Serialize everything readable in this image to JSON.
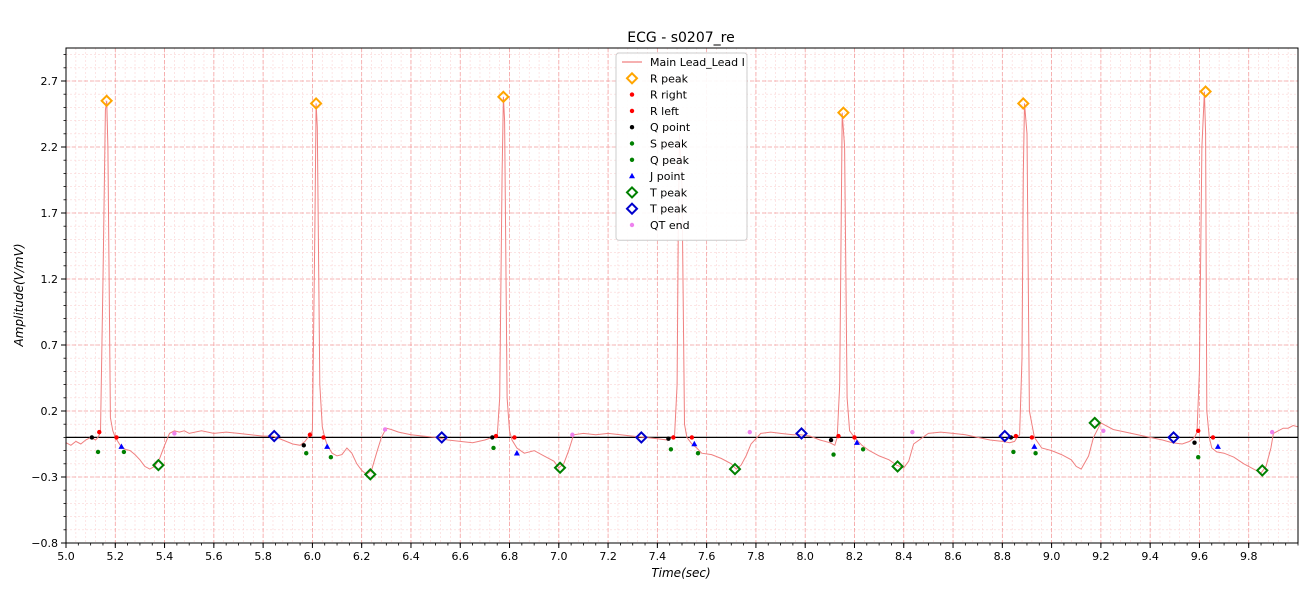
{
  "chart_data": {
    "type": "line",
    "title": "ECG - s0207_re",
    "xlabel": "Time(sec)",
    "ylabel": "Amplitude(V/mV)",
    "xlim": [
      5.0,
      10.0
    ],
    "ylim": [
      -0.8,
      2.95
    ],
    "x_ticks": [
      5.0,
      5.2,
      5.4,
      5.6,
      5.8,
      6.0,
      6.2,
      6.4,
      6.6,
      6.8,
      7.0,
      7.2,
      7.4,
      7.6,
      7.8,
      8.0,
      8.2,
      8.4,
      8.6,
      8.8,
      9.0,
      9.2,
      9.4,
      9.6,
      9.8
    ],
    "x_tick_labels": [
      "5.0",
      "5.2",
      "5.4",
      "5.6",
      "5.8",
      "6.0",
      "6.2",
      "6.4",
      "6.6",
      "6.8",
      "7.0",
      "7.2",
      "7.4",
      "7.6",
      "7.8",
      "8.0",
      "8.2",
      "8.4",
      "8.6",
      "8.8",
      "9.0",
      "9.2",
      "9.4",
      "9.6",
      "9.8"
    ],
    "y_ticks": [
      -0.8,
      -0.3,
      0.2,
      0.7,
      1.2,
      1.7,
      2.2,
      2.7
    ],
    "y_tick_labels": [
      "−0.8",
      "−0.3",
      "0.2",
      "0.7",
      "1.2",
      "1.7",
      "2.2",
      "2.7"
    ],
    "grid": true,
    "baseline": 0.0,
    "legend_position": "top-center",
    "colors": {
      "signal": "#f08080",
      "grid_major": "#f4a0a0",
      "grid_minor": "#fbd4d4",
      "r_peak": "#ffa500",
      "r_right": "#ff0000",
      "r_left": "#ff0000",
      "q_point": "#000000",
      "s_peak": "#008000",
      "q_peak": "#008000",
      "j_point": "#0000ff",
      "t_peak_green": "#008000",
      "t_peak_blue": "#0000cd",
      "qt_end": "#ee82ee"
    },
    "series": [
      {
        "name": "Main Lead_Lead I",
        "role": "signal",
        "x": [
          5.0,
          5.02,
          5.04,
          5.06,
          5.08,
          5.1,
          5.12,
          5.13,
          5.14,
          5.15,
          5.16,
          5.165,
          5.17,
          5.18,
          5.19,
          5.2,
          5.22,
          5.24,
          5.26,
          5.28,
          5.3,
          5.32,
          5.34,
          5.36,
          5.38,
          5.4,
          5.42,
          5.44,
          5.46,
          5.48,
          5.5,
          5.55,
          5.6,
          5.65,
          5.7,
          5.75,
          5.8,
          5.84,
          5.88,
          5.92,
          5.95,
          5.97,
          5.99,
          6.0,
          6.01,
          6.015,
          6.02,
          6.03,
          6.04,
          6.05,
          6.06,
          6.08,
          6.1,
          6.12,
          6.14,
          6.16,
          6.18,
          6.2,
          6.22,
          6.24,
          6.26,
          6.28,
          6.3,
          6.32,
          6.35,
          6.4,
          6.45,
          6.5,
          6.55,
          6.6,
          6.65,
          6.7,
          6.73,
          6.75,
          6.76,
          6.77,
          6.775,
          6.78,
          6.79,
          6.8,
          6.81,
          6.83,
          6.86,
          6.9,
          6.94,
          6.98,
          7.0,
          7.02,
          7.04,
          7.06,
          7.1,
          7.15,
          7.2,
          7.25,
          7.3,
          7.35,
          7.4,
          7.44,
          7.46,
          7.47,
          7.48,
          7.485,
          7.49,
          7.5,
          7.51,
          7.52,
          7.54,
          7.56,
          7.58,
          7.62,
          7.66,
          7.7,
          7.72,
          7.74,
          7.76,
          7.78,
          7.82,
          7.86,
          7.9,
          7.95,
          7.98,
          8.02,
          8.06,
          8.1,
          8.12,
          8.13,
          8.14,
          8.15,
          8.16,
          8.17,
          8.18,
          8.2,
          8.23,
          8.26,
          8.3,
          8.34,
          8.37,
          8.4,
          8.42,
          8.44,
          8.5,
          8.55,
          8.6,
          8.65,
          8.7,
          8.75,
          8.8,
          8.83,
          8.85,
          8.86,
          8.87,
          8.88,
          8.885,
          8.89,
          8.9,
          8.91,
          8.93,
          8.96,
          9.0,
          9.04,
          9.08,
          9.1,
          9.12,
          9.15,
          9.17,
          9.2,
          9.25,
          9.3,
          9.35,
          9.4,
          9.45,
          9.49,
          9.53,
          9.56,
          9.58,
          9.59,
          9.6,
          9.61,
          9.62,
          9.625,
          9.63,
          9.64,
          9.65,
          9.67,
          9.7,
          9.74,
          9.78,
          9.82,
          9.85,
          9.87,
          9.89,
          9.9,
          9.92,
          9.94,
          9.96,
          9.98,
          10.0
        ],
        "y": [
          -0.04,
          -0.06,
          -0.03,
          -0.05,
          -0.02,
          0.0,
          -0.02,
          0.0,
          0.04,
          1.2,
          2.48,
          2.55,
          2.2,
          0.15,
          0.05,
          0.0,
          -0.06,
          -0.09,
          -0.1,
          -0.13,
          -0.17,
          -0.22,
          -0.24,
          -0.22,
          -0.16,
          -0.06,
          0.03,
          0.05,
          0.04,
          0.05,
          0.03,
          0.05,
          0.03,
          0.04,
          0.03,
          0.02,
          0.01,
          0.01,
          -0.02,
          -0.05,
          -0.06,
          -0.03,
          0.02,
          0.05,
          1.6,
          2.53,
          2.35,
          0.4,
          0.08,
          0.0,
          -0.06,
          -0.12,
          -0.14,
          -0.13,
          -0.08,
          -0.12,
          -0.2,
          -0.25,
          -0.28,
          -0.25,
          -0.12,
          0.0,
          0.07,
          0.06,
          0.04,
          0.02,
          0.01,
          0.0,
          -0.02,
          -0.03,
          -0.04,
          -0.02,
          0.0,
          0.01,
          0.3,
          2.0,
          2.58,
          2.4,
          0.3,
          0.05,
          -0.02,
          -0.08,
          -0.12,
          -0.1,
          -0.14,
          -0.18,
          -0.23,
          -0.2,
          -0.1,
          0.02,
          0.03,
          0.02,
          0.03,
          0.02,
          0.01,
          0.0,
          -0.01,
          -0.02,
          0.0,
          0.02,
          0.4,
          1.6,
          2.3,
          1.9,
          0.1,
          0.0,
          -0.05,
          -0.08,
          -0.12,
          -0.13,
          -0.16,
          -0.2,
          -0.24,
          -0.21,
          -0.14,
          -0.05,
          0.03,
          0.04,
          0.03,
          0.02,
          0.02,
          0.01,
          -0.02,
          -0.04,
          -0.06,
          0.0,
          0.4,
          2.46,
          2.2,
          0.3,
          0.05,
          0.0,
          -0.06,
          -0.1,
          -0.14,
          -0.17,
          -0.21,
          -0.23,
          -0.18,
          -0.05,
          0.03,
          0.04,
          0.03,
          0.02,
          0.0,
          -0.02,
          -0.03,
          -0.04,
          -0.03,
          0.0,
          0.02,
          0.6,
          2.0,
          2.53,
          2.3,
          0.2,
          0.0,
          -0.08,
          -0.1,
          -0.13,
          -0.17,
          -0.22,
          -0.24,
          -0.14,
          0.0,
          0.11,
          0.06,
          0.04,
          0.02,
          0.0,
          -0.02,
          -0.04,
          -0.05,
          -0.03,
          0.0,
          0.04,
          0.5,
          2.2,
          2.62,
          2.3,
          0.2,
          0.0,
          -0.08,
          -0.11,
          -0.12,
          -0.15,
          -0.2,
          -0.24,
          -0.27,
          -0.22,
          -0.08,
          0.03,
          0.05,
          0.07,
          0.07,
          0.09,
          0.08
        ]
      },
      {
        "name": "R peak",
        "marker": "diamond-open",
        "color": "#ffa500",
        "x": [
          5.165,
          6.015,
          6.775,
          8.155,
          8.885,
          9.625
        ],
        "y": [
          2.55,
          2.53,
          2.58,
          2.46,
          2.53,
          2.62
        ]
      },
      {
        "name": "R right",
        "marker": "dot",
        "color": "#ff0000",
        "x": [
          5.135,
          5.99,
          6.745,
          7.465,
          8.135,
          8.855,
          9.595
        ],
        "y": [
          0.04,
          0.02,
          0.01,
          0.0,
          0.01,
          0.01,
          0.05
        ]
      },
      {
        "name": "R left",
        "marker": "dot",
        "color": "#ff0000",
        "x": [
          5.205,
          6.045,
          6.82,
          7.54,
          8.2,
          8.92,
          9.655
        ],
        "y": [
          0.0,
          0.0,
          0.0,
          0.0,
          0.0,
          0.0,
          0.0
        ]
      },
      {
        "name": "Q point",
        "marker": "dot",
        "color": "#000000",
        "x": [
          5.105,
          5.965,
          6.73,
          7.445,
          8.105,
          8.835,
          9.58
        ],
        "y": [
          0.0,
          -0.06,
          0.0,
          -0.01,
          -0.02,
          0.0,
          -0.04
        ]
      },
      {
        "name": "S peak",
        "marker": "dot",
        "color": "#008000",
        "x": [
          5.235,
          6.075,
          7.565,
          8.235,
          8.935
        ],
        "y": [
          -0.11,
          -0.15,
          -0.12,
          -0.09,
          -0.12
        ]
      },
      {
        "name": "Q peak",
        "marker": "dot",
        "color": "#008000",
        "x": [
          5.13,
          5.975,
          6.735,
          7.455,
          8.115,
          8.845,
          9.595
        ],
        "y": [
          -0.11,
          -0.12,
          -0.08,
          -0.09,
          -0.13,
          -0.11,
          -0.15
        ]
      },
      {
        "name": "J point",
        "marker": "triangle",
        "color": "#0000ff",
        "x": [
          5.225,
          6.06,
          6.83,
          7.55,
          8.21,
          8.93,
          9.675
        ],
        "y": [
          -0.07,
          -0.07,
          -0.12,
          -0.05,
          -0.04,
          -0.07,
          -0.07
        ]
      },
      {
        "name": "T peak",
        "marker": "diamond-open",
        "color": "#008000",
        "x": [
          5.375,
          6.235,
          7.005,
          7.715,
          8.375,
          9.175,
          9.855
        ],
        "y": [
          -0.21,
          -0.28,
          -0.23,
          -0.24,
          -0.22,
          0.11,
          -0.25
        ]
      },
      {
        "name": "T peak",
        "marker": "diamond-open",
        "color": "#0000cd",
        "x": [
          5.845,
          6.525,
          7.335,
          7.985,
          8.81,
          9.495
        ],
        "y": [
          0.01,
          0.0,
          0.0,
          0.03,
          0.01,
          0.0
        ]
      },
      {
        "name": "QT end",
        "marker": "dot",
        "color": "#ee82ee",
        "x": [
          5.44,
          6.295,
          7.055,
          7.775,
          8.435,
          9.21,
          9.895
        ],
        "y": [
          0.03,
          0.06,
          0.02,
          0.04,
          0.04,
          0.05,
          0.04
        ]
      }
    ]
  }
}
